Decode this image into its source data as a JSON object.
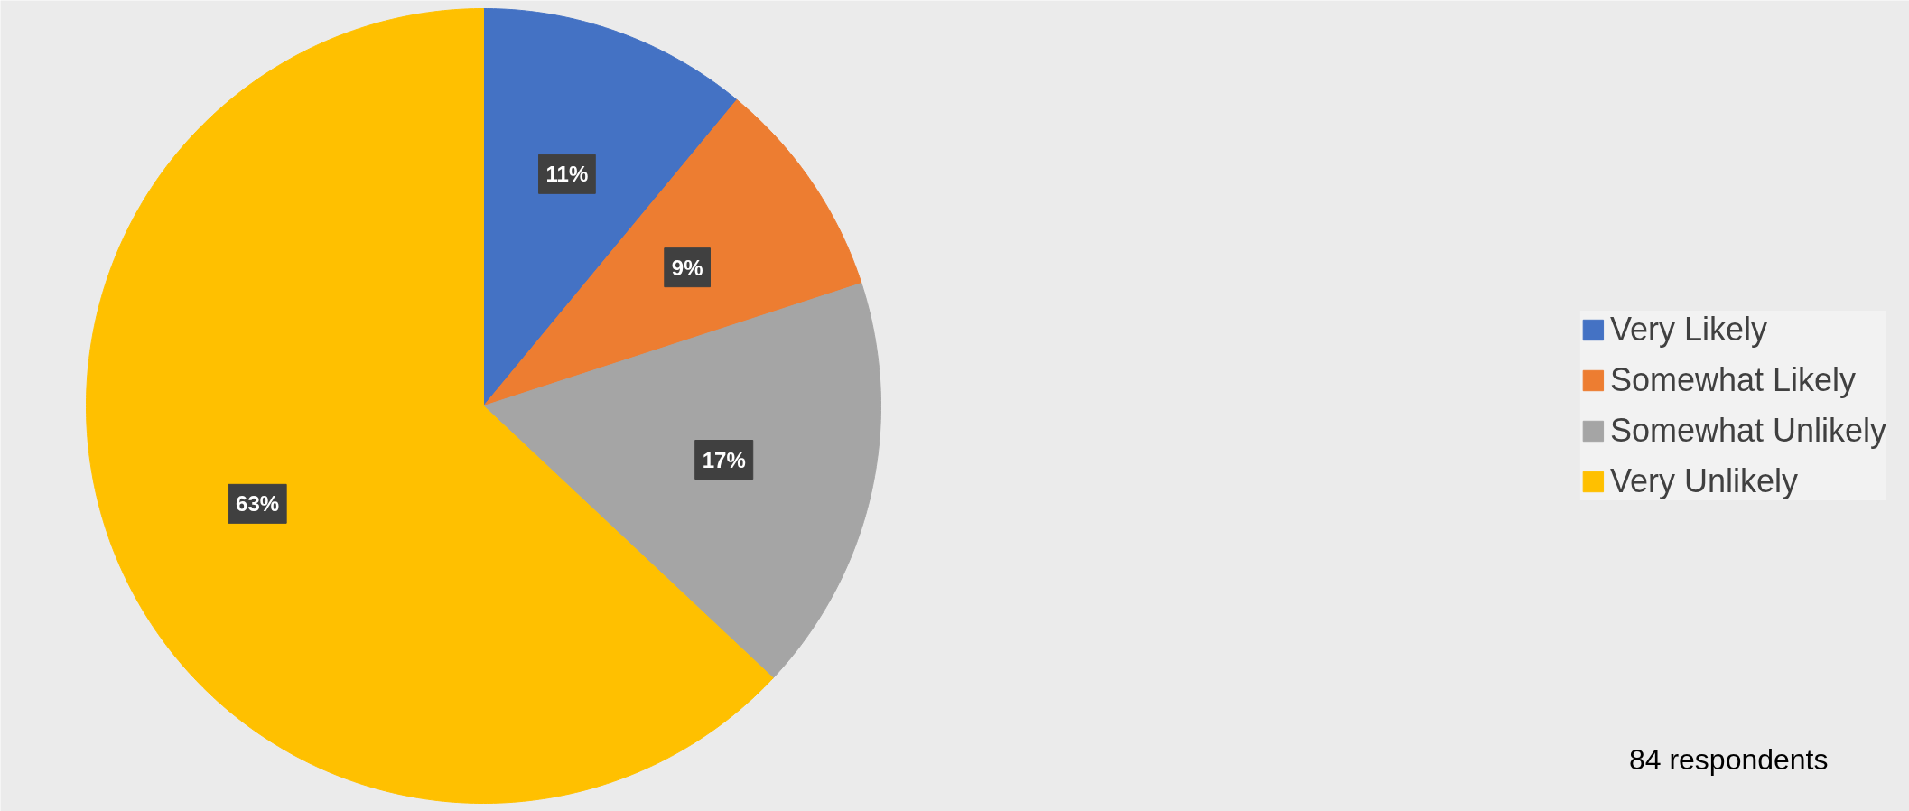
{
  "chart_data": {
    "type": "pie",
    "categories": [
      "Very Likely",
      "Somewhat Likely",
      "Somewhat Unlikely",
      "Very Unlikely"
    ],
    "values": [
      11,
      9,
      17,
      63
    ],
    "colors": [
      "#4472c4",
      "#ed7d31",
      "#a5a5a5",
      "#ffc000"
    ],
    "value_labels": [
      "11%",
      "9%",
      "17%",
      "63%"
    ],
    "legend": "right",
    "annotations": [
      "84 respondents"
    ]
  }
}
